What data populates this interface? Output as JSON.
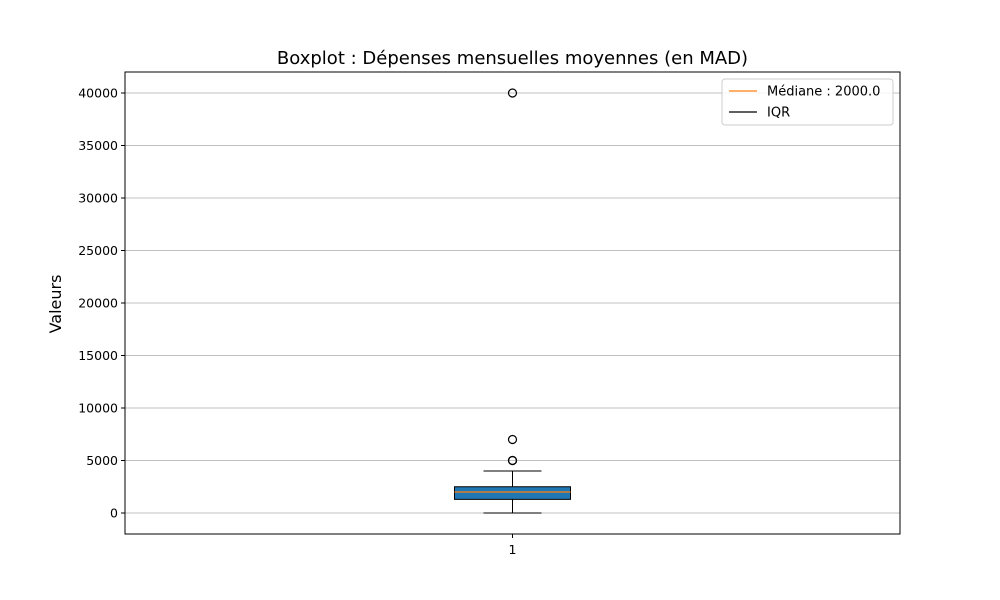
{
  "chart_data": {
    "type": "box",
    "title": "Boxplot : Dépenses mensuelles moyennes (en MAD)",
    "xlabel": "",
    "ylabel": "Valeurs",
    "categories": [
      "1"
    ],
    "ylim": [
      -2000,
      42000
    ],
    "yticks": [
      0,
      5000,
      10000,
      15000,
      20000,
      25000,
      30000,
      35000,
      40000
    ],
    "grid": "y",
    "legend_position": "top-right",
    "box": {
      "whisker_low": 0,
      "q1": 1300,
      "median": 2000,
      "q3": 2500,
      "whisker_high": 4000,
      "outliers": [
        5000,
        5000,
        7000,
        40000
      ]
    },
    "legend": [
      {
        "label": "Médiane : 2000.0",
        "color": "#ff7f0e"
      },
      {
        "label": "IQR",
        "color": "#000000"
      }
    ],
    "colors": {
      "box_fill": "#1f77b4",
      "median_line": "#ff7f0e",
      "edge": "#000000",
      "grid": "#c0c0c0"
    }
  }
}
